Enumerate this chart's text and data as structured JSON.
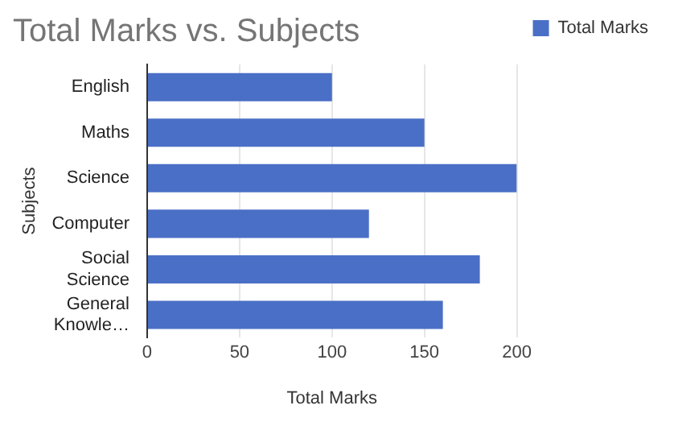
{
  "chart_data": {
    "type": "bar",
    "orientation": "horizontal",
    "title": "Total Marks vs. Subjects",
    "xlabel": "Total Marks",
    "ylabel": "Subjects",
    "categories": [
      "English",
      "Maths",
      "Science",
      "Computer",
      "Social Science",
      "General Knowle…"
    ],
    "series": [
      {
        "name": "Total Marks",
        "color": "#4a6fc6",
        "values": [
          100,
          150,
          200,
          120,
          180,
          160
        ]
      }
    ],
    "xlim": [
      0,
      200
    ],
    "xticks": [
      0,
      50,
      100,
      150,
      200
    ],
    "grid": "x",
    "legend": "top right"
  }
}
